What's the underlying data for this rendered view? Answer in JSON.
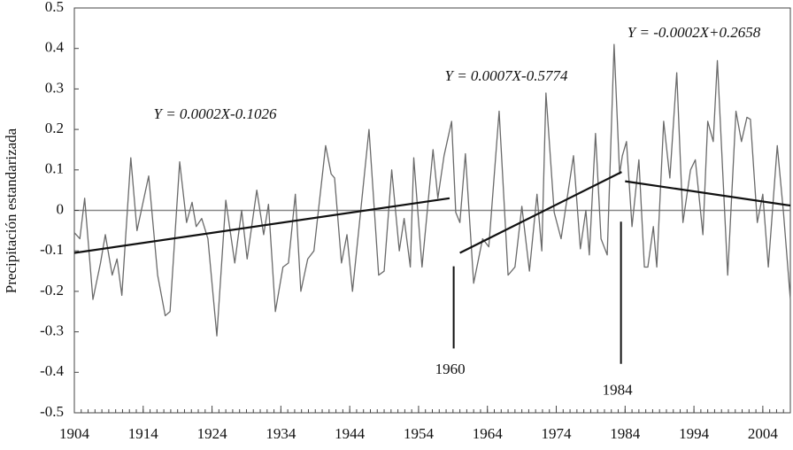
{
  "chart_data": {
    "type": "line",
    "y_label": "Precipitación estandarizada",
    "xlim": [
      1904,
      2008
    ],
    "ylim": [
      -0.5,
      0.5
    ],
    "xticks": [
      1904,
      1914,
      1924,
      1934,
      1944,
      1954,
      1964,
      1974,
      1984,
      1994,
      2004
    ],
    "xminorticks": [
      1904,
      1905,
      1906,
      1907,
      1908,
      1909,
      1910,
      1911,
      1912,
      1913,
      1914,
      1915,
      1916,
      1917,
      1918,
      1919,
      1920,
      1921,
      1922,
      1923,
      1924,
      1925,
      1926,
      1927,
      1928,
      1929,
      1930,
      1931,
      1932,
      1933,
      1934,
      1935,
      1936,
      1937,
      1938,
      1939,
      1940,
      1941,
      1942,
      1943,
      1944,
      1945,
      1946,
      1947,
      1948,
      1949,
      1950,
      1951,
      1952,
      1953,
      1954,
      1955,
      1956,
      1957,
      1958,
      1959,
      1960,
      1961,
      1962,
      1963,
      1964,
      1965,
      1966,
      1967,
      1968,
      1969,
      1970,
      1971,
      1972,
      1973,
      1974,
      1975,
      1976,
      1977,
      1978,
      1979,
      1980,
      1981,
      1982,
      1983,
      1984,
      1985,
      1986,
      1987,
      1988,
      1989,
      1990,
      1991,
      1992,
      1993,
      1994,
      1995,
      1996,
      1997,
      1998,
      1999,
      2000,
      2001,
      2002,
      2003,
      2004,
      2005,
      2006,
      2007,
      2008
    ],
    "yticks": [
      -0.5,
      -0.4,
      -0.3,
      -0.2,
      -0.1,
      0,
      0.1,
      0.2,
      0.3,
      0.4,
      0.5
    ],
    "zero_line": true,
    "series": [
      {
        "color": "#6a6a6a",
        "x": [
          1904,
          1904.8,
          1905.5,
          1906.7,
          1907.8,
          1908.5,
          1909.5,
          1910.2,
          1910.9,
          1912.2,
          1913.1,
          1914.8,
          1916.1,
          1917.2,
          1917.9,
          1919.3,
          1920.3,
          1921.1,
          1921.7,
          1922.5,
          1923.4,
          1924.7,
          1926,
          1927.3,
          1928.3,
          1929.1,
          1930.5,
          1931.5,
          1932.2,
          1933.2,
          1934.3,
          1935.1,
          1936.1,
          1936.9,
          1937.9,
          1938.8,
          1940.5,
          1941.3,
          1941.8,
          1942.8,
          1943.6,
          1944.4,
          1946.8,
          1948.2,
          1949,
          1950.1,
          1951.2,
          1951.9,
          1952.8,
          1953.3,
          1954.5,
          1956.1,
          1956.8,
          1957.7,
          1958.8,
          1959.4,
          1960,
          1960.8,
          1962,
          1963.3,
          1964.2,
          1965.7,
          1967,
          1968,
          1969,
          1970.1,
          1971.2,
          1971.9,
          1972.5,
          1973.7,
          1974.7,
          1976.5,
          1977.5,
          1978.3,
          1978.8,
          1979.7,
          1980.5,
          1981.4,
          1982.4,
          1983.2,
          1983.6,
          1984.2,
          1985,
          1986,
          1986.8,
          1987.3,
          1988.1,
          1988.6,
          1989.6,
          1990.5,
          1991.5,
          1992.4,
          1993.5,
          1994.2,
          1995.3,
          1996,
          1996.8,
          1997.4,
          1998.9,
          2000.1,
          2000.9,
          2001.7,
          2002.2,
          2003.2,
          2004,
          2004.8,
          2006.1,
          2007,
          2008
        ],
        "values": [
          -0.055,
          -0.07,
          0.03,
          -0.22,
          -0.13,
          -0.06,
          -0.16,
          -0.12,
          -0.21,
          0.13,
          -0.05,
          0.085,
          -0.16,
          -0.26,
          -0.25,
          0.12,
          -0.03,
          0.02,
          -0.04,
          -0.02,
          -0.07,
          -0.31,
          0.025,
          -0.13,
          0,
          -0.12,
          0.05,
          -0.06,
          0.015,
          -0.25,
          -0.14,
          -0.13,
          0.04,
          -0.2,
          -0.12,
          -0.1,
          0.16,
          0.09,
          0.08,
          -0.13,
          -0.06,
          -0.2,
          0.2,
          -0.16,
          -0.15,
          0.1,
          -0.1,
          -0.02,
          -0.14,
          0.13,
          -0.14,
          0.15,
          0.03,
          0.135,
          0.22,
          -0.005,
          -0.03,
          0.14,
          -0.18,
          -0.07,
          -0.09,
          0.245,
          -0.16,
          -0.14,
          0.01,
          -0.15,
          0.04,
          -0.1,
          0.29,
          -0.005,
          -0.07,
          0.135,
          -0.095,
          0,
          -0.11,
          0.19,
          -0.07,
          -0.11,
          0.41,
          0.09,
          0.135,
          0.17,
          -0.04,
          0.125,
          -0.14,
          -0.14,
          -0.04,
          -0.14,
          0.22,
          0.08,
          0.34,
          -0.03,
          0.1,
          0.125,
          -0.06,
          0.22,
          0.17,
          0.37,
          -0.16,
          0.245,
          0.17,
          0.23,
          0.225,
          -0.03,
          0.04,
          -0.14,
          0.16,
          -0.005,
          -0.22
        ]
      }
    ],
    "trend_lines": [
      {
        "label": "Y = 0.0002X-0.1026",
        "color": "#111111",
        "x": [
          1904,
          1958.5
        ],
        "values": [
          -0.105,
          0.03
        ]
      },
      {
        "label": "Y = 0.0007X-0.5774",
        "color": "#111111",
        "x": [
          1960,
          1983.5
        ],
        "values": [
          -0.105,
          0.095
        ]
      },
      {
        "label": "Y = -0.0002X+0.2658",
        "color": "#111111",
        "x": [
          1984,
          2008
        ],
        "values": [
          0.072,
          0.012
        ]
      }
    ],
    "markers": [
      {
        "text": "1960",
        "x": 1959.1,
        "y1": -0.138,
        "y2": -0.341
      },
      {
        "text": "1984",
        "x": 1983.4,
        "y1": -0.028,
        "y2": -0.379
      }
    ]
  }
}
